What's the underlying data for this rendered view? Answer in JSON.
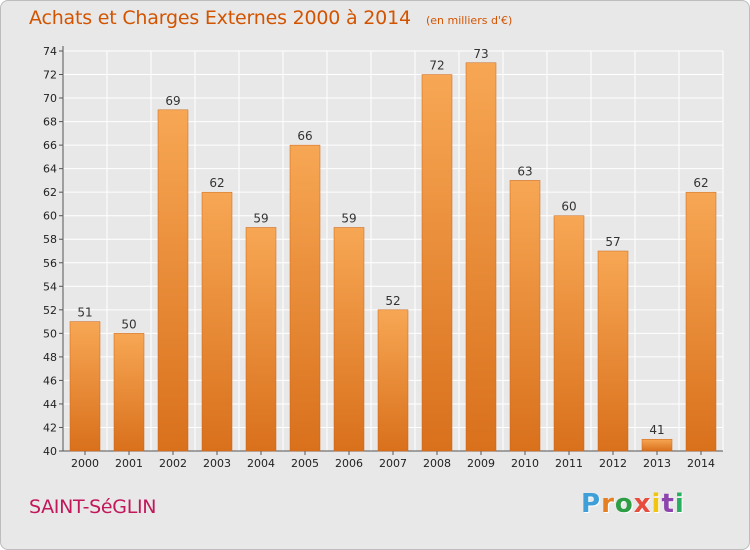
{
  "header": {
    "title": "Achats et Charges Externes 2000 à 2014",
    "subtitle": "(en milliers d'€)"
  },
  "footer": {
    "commune": "SAINT-SéGLIN",
    "brand": "Proxiti",
    "brand_colors": [
      "#3f9fd8",
      "#e67e22",
      "#2e9e44",
      "#e74c3c",
      "#f1c40f",
      "#8e44ad",
      "#27ae60"
    ]
  },
  "colors": {
    "bar_top": "#f7a754",
    "bar_bottom": "#d9701c",
    "title": "#d35400",
    "commune": "#c2185b",
    "grid": "#ffffff",
    "background": "#e8e8e8"
  },
  "chart_data": {
    "type": "bar",
    "categories": [
      "2000",
      "2001",
      "2002",
      "2003",
      "2004",
      "2005",
      "2006",
      "2007",
      "2008",
      "2009",
      "2010",
      "2011",
      "2012",
      "2013",
      "2014"
    ],
    "values": [
      51,
      50,
      69,
      62,
      59,
      66,
      59,
      52,
      72,
      73,
      63,
      60,
      57,
      41,
      62
    ],
    "ylim": [
      40,
      74
    ],
    "yticks": [
      40,
      42,
      44,
      46,
      48,
      50,
      52,
      54,
      56,
      58,
      60,
      62,
      64,
      66,
      68,
      70,
      72,
      74
    ],
    "grid": true,
    "xlabel": "",
    "ylabel": ""
  }
}
